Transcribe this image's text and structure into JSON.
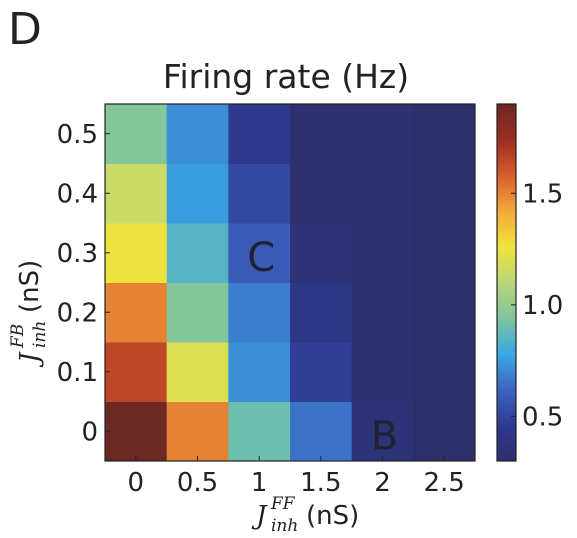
{
  "panel_label": "D",
  "chart_data": {
    "type": "heatmap",
    "title": "Firing rate (Hz)",
    "xlabel": {
      "symbol": "J",
      "superscript": "FF",
      "subscript": "inh",
      "unit": "(nS)"
    },
    "ylabel": {
      "symbol": "J",
      "superscript": "FB",
      "subscript": "inh",
      "unit": "(nS)"
    },
    "x": [
      0,
      0.5,
      1,
      1.5,
      2,
      2.5
    ],
    "x_tick_labels": [
      "0",
      "0.5",
      "1",
      "1.5",
      "2",
      "2.5"
    ],
    "y": [
      0,
      0.1,
      0.2,
      0.3,
      0.4,
      0.5
    ],
    "y_tick_labels": [
      "0",
      "0.1",
      "0.2",
      "0.3",
      "0.4",
      "0.5"
    ],
    "values": [
      [
        1.9,
        1.5,
        0.9,
        0.65,
        0.35,
        0.3
      ],
      [
        1.65,
        1.2,
        0.72,
        0.48,
        0.32,
        0.3
      ],
      [
        1.5,
        0.95,
        0.68,
        0.42,
        0.32,
        0.3
      ],
      [
        1.25,
        0.85,
        0.58,
        0.35,
        0.32,
        0.3
      ],
      [
        1.15,
        0.75,
        0.52,
        0.32,
        0.32,
        0.3
      ],
      [
        0.95,
        0.72,
        0.45,
        0.32,
        0.32,
        0.3
      ]
    ],
    "colorbar": {
      "range": [
        0.3,
        1.9
      ],
      "ticks": [
        0.5,
        1.0,
        1.5
      ],
      "tick_labels": [
        "0.5",
        "1.0",
        "1.5"
      ],
      "colormap": [
        "#2e2e6b",
        "#2e3a8f",
        "#3d64c2",
        "#38a9e2",
        "#7fc59c",
        "#b9d67a",
        "#f0e43a",
        "#f2a93b",
        "#d85b2d",
        "#9c2d22",
        "#6b2824"
      ]
    },
    "annotations": [
      {
        "text": "C",
        "x": 1,
        "y": 0.3
      },
      {
        "text": "B",
        "x": 2,
        "y": 0
      }
    ]
  }
}
